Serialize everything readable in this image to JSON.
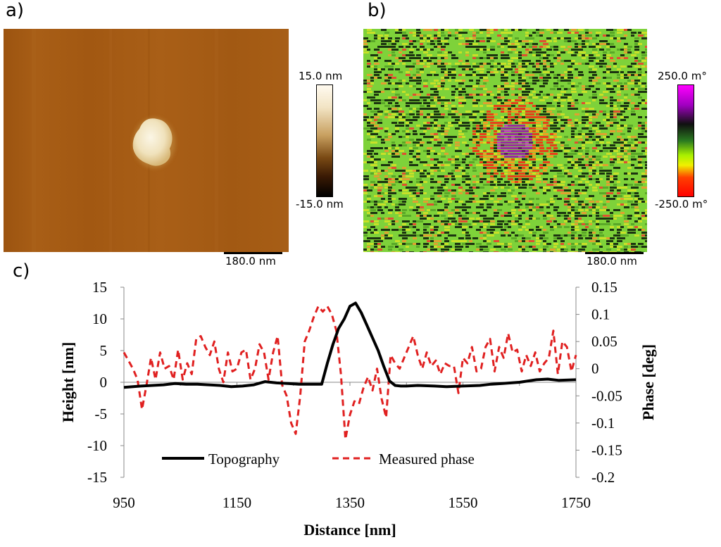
{
  "panels": {
    "a": {
      "label": "a)",
      "colorbar_max": "15.0 nm",
      "colorbar_min": "-15.0 nm",
      "scale": "180.0 nm",
      "colors": {
        "background": "#a45a12",
        "feature": "#f4ecd4"
      }
    },
    "b": {
      "label": "b)",
      "colorbar_max": "250.0 m°",
      "colorbar_min": "-250.0 m°",
      "scale": "180.0 nm",
      "colors": {
        "background": "#7ed23a",
        "feature": "#8a1e8a",
        "halo": "#e8401a"
      }
    },
    "c": {
      "label": "c)"
    }
  },
  "chart_data": {
    "type": "line",
    "xlabel": "Distance [nm]",
    "ylabel": "Height [nm]",
    "y2label": "Phase [deg]",
    "xlim": [
      950,
      1750
    ],
    "ylim": [
      -15,
      15
    ],
    "y2lim": [
      -0.2,
      0.15
    ],
    "xticks": [
      "950",
      "1150",
      "1350",
      "1550",
      "1750"
    ],
    "yticks": [
      "15",
      "10",
      "5",
      "0",
      "-5",
      "-10",
      "-15"
    ],
    "y2ticks": [
      "0.15",
      "0.1",
      "0.05",
      "0",
      "-0.05",
      "-0.1",
      "-0.15",
      "-0.2"
    ],
    "legend_position": "bottom-center",
    "series": [
      {
        "name": "Topography",
        "axis": "left",
        "color": "#000000",
        "style": "solid",
        "x": [
          950,
          980,
          1000,
          1020,
          1040,
          1060,
          1080,
          1100,
          1120,
          1140,
          1160,
          1180,
          1200,
          1220,
          1240,
          1260,
          1280,
          1290,
          1300,
          1310,
          1320,
          1330,
          1340,
          1350,
          1360,
          1370,
          1380,
          1390,
          1400,
          1410,
          1420,
          1430,
          1440,
          1450,
          1470,
          1500,
          1520,
          1550,
          1580,
          1600,
          1620,
          1650,
          1680,
          1700,
          1720,
          1750
        ],
        "y": [
          -0.8,
          -0.6,
          -0.5,
          -0.4,
          -0.2,
          -0.3,
          -0.3,
          -0.4,
          -0.5,
          -0.7,
          -0.6,
          -0.4,
          0.1,
          -0.1,
          -0.2,
          -0.3,
          -0.3,
          -0.3,
          -0.3,
          3,
          6,
          8.5,
          10,
          12,
          12.5,
          11,
          9,
          7,
          5,
          2.5,
          0.2,
          -0.5,
          -0.6,
          -0.6,
          -0.5,
          -0.6,
          -0.7,
          -0.6,
          -0.5,
          -0.3,
          -0.2,
          0,
          0.4,
          0.5,
          0.3,
          0.4
        ]
      },
      {
        "name": "Measured phase",
        "axis": "right",
        "color": "#e02020",
        "style": "dashed",
        "x": [
          950,
          958,
          966,
          974,
          982,
          990,
          998,
          1006,
          1014,
          1022,
          1030,
          1038,
          1046,
          1054,
          1062,
          1070,
          1078,
          1086,
          1094,
          1102,
          1110,
          1118,
          1126,
          1134,
          1142,
          1150,
          1158,
          1166,
          1174,
          1182,
          1190,
          1198,
          1206,
          1214,
          1222,
          1230,
          1238,
          1246,
          1254,
          1262,
          1270,
          1278,
          1286,
          1294,
          1302,
          1310,
          1318,
          1326,
          1334,
          1342,
          1350,
          1358,
          1366,
          1374,
          1382,
          1390,
          1398,
          1406,
          1414,
          1422,
          1430,
          1438,
          1446,
          1454,
          1462,
          1470,
          1478,
          1486,
          1494,
          1502,
          1510,
          1518,
          1526,
          1534,
          1542,
          1550,
          1558,
          1566,
          1574,
          1582,
          1590,
          1598,
          1606,
          1614,
          1622,
          1630,
          1638,
          1646,
          1654,
          1662,
          1670,
          1678,
          1686,
          1694,
          1702,
          1710,
          1718,
          1726,
          1734,
          1742,
          1750
        ],
        "y": [
          0.03,
          0.015,
          0.0,
          -0.02,
          -0.075,
          -0.03,
          0.02,
          -0.02,
          0.03,
          0.0,
          0.005,
          -0.02,
          0.035,
          -0.02,
          0.01,
          -0.01,
          0.055,
          0.06,
          0.04,
          0.025,
          0.05,
          0.0,
          -0.025,
          0.03,
          -0.005,
          0.0,
          0.03,
          0.035,
          -0.02,
          0.0,
          0.045,
          0.03,
          -0.02,
          0.03,
          0.06,
          -0.03,
          -0.05,
          -0.1,
          -0.12,
          -0.05,
          0.05,
          0.07,
          0.095,
          0.115,
          0.105,
          0.115,
          0.1,
          0.07,
          -0.01,
          -0.13,
          -0.085,
          -0.06,
          -0.065,
          -0.035,
          -0.015,
          -0.04,
          0.0,
          -0.055,
          -0.09,
          0.025,
          0.01,
          0.0,
          0.02,
          0.04,
          0.06,
          0.025,
          0.0,
          0.03,
          0.005,
          0.015,
          -0.01,
          0.01,
          0.005,
          0.005,
          -0.045,
          0.02,
          0.01,
          0.04,
          -0.005,
          0.0,
          0.04,
          0.055,
          -0.005,
          0.04,
          0.02,
          0.065,
          0.03,
          0.035,
          -0.005,
          0.025,
          0.005,
          0.03,
          -0.005,
          0.01,
          0.02,
          0.07,
          -0.01,
          0.05,
          0.04,
          -0.005,
          0.025
        ]
      }
    ]
  }
}
